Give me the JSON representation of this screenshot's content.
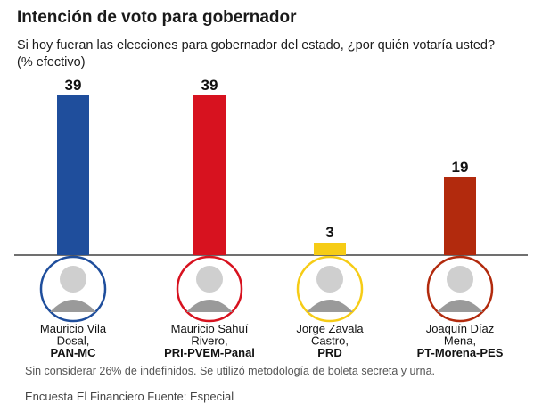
{
  "header": {
    "title": "Intención de voto para gobernador",
    "subtitle": "Si hoy fueran las elecciones para gobernador del estado, ¿por quién votaría usted?",
    "unit": "(% efectivo)"
  },
  "footer": {
    "note": "Sin considerar 26% de indefinidos. Se utilizó metodología de boleta secreta y urna.",
    "source": "Encuesta El Financiero Fuente: Especial"
  },
  "chart_data": {
    "type": "bar",
    "title": "Intención de voto para gobernador",
    "categories": [
      "Mauricio Vila Dosal, PAN-MC",
      "Mauricio Sahuí Rivero, PRI-PVEM-Panal",
      "Jorge Zavala Castro, PRD",
      "Joaquín Díaz Mena, PT-Morena-PES"
    ],
    "values": [
      39,
      39,
      3,
      19
    ],
    "ylim": [
      0,
      39
    ],
    "grid": false,
    "legend": "none",
    "bars": [
      {
        "value": 39,
        "label": "39",
        "color": "#1f4e9c",
        "circle": "#1f4e9c",
        "name_lines": [
          "Mauricio Vila",
          "Dosal,"
        ],
        "party": "PAN-MC"
      },
      {
        "value": 39,
        "label": "39",
        "color": "#d7121f",
        "circle": "#d7121f",
        "name_lines": [
          "Mauricio Sahuí",
          "Rivero,"
        ],
        "party": "PRI-PVEM-Panal"
      },
      {
        "value": 3,
        "label": "3",
        "color": "#f6cc16",
        "circle": "#f6cc16",
        "name_lines": [
          "Jorge Zavala",
          "Castro,"
        ],
        "party": "PRD"
      },
      {
        "value": 19,
        "label": "19",
        "color": "#b22a0d",
        "circle": "#b22a0d",
        "name_lines": [
          "Joaquín Díaz",
          "Mena,"
        ],
        "party": "PT-Morena-PES"
      }
    ]
  }
}
